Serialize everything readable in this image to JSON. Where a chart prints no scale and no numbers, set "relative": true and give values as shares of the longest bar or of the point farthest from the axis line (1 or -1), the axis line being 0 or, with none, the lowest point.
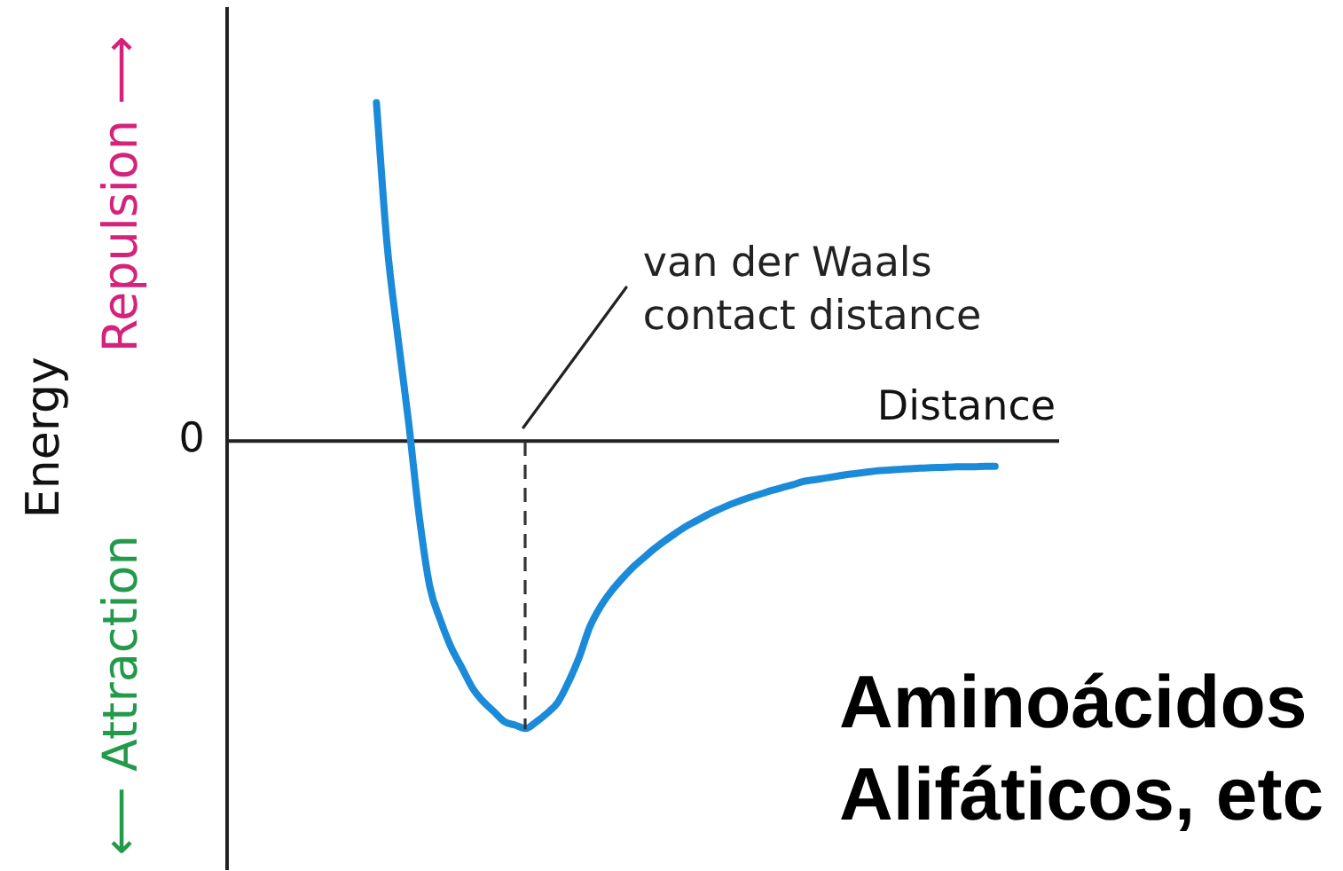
{
  "chart_data": {
    "type": "line",
    "xlabel": "Distance",
    "ylabel": "Energy",
    "relative": true,
    "marker": "none",
    "grid": false,
    "legend": false,
    "categories": [
      null,
      null,
      null,
      null,
      null,
      null,
      null,
      null,
      null,
      null,
      null,
      null,
      null,
      null,
      null,
      null,
      null,
      null,
      null,
      null,
      null,
      null,
      null,
      null,
      null,
      null,
      null,
      null,
      null,
      null,
      null,
      null,
      null,
      null,
      null,
      null,
      null,
      null,
      null,
      null,
      null,
      null,
      null,
      null,
      null,
      null,
      null,
      null,
      null,
      null,
      null,
      null,
      null,
      null,
      null,
      null,
      null,
      null,
      null,
      null,
      null,
      null,
      null,
      null,
      null,
      null,
      null,
      null,
      null,
      null,
      null,
      null,
      null,
      null,
      null,
      null,
      null,
      null,
      null
    ],
    "values": [
      null,
      null,
      null,
      null,
      null,
      null,
      null,
      null,
      null,
      null,
      null,
      null,
      null,
      null,
      1,
      0.58,
      0.31,
      0.06,
      -0.22,
      -0.43,
      -0.53,
      -0.61,
      -0.67,
      -0.73,
      -0.77,
      -0.8,
      -0.83,
      -0.84,
      -0.85,
      -0.83,
      -0.805,
      -0.773,
      -0.713,
      -0.64,
      -0.55,
      -0.49,
      -0.445,
      -0.408,
      -0.375,
      -0.347,
      -0.32,
      -0.296,
      -0.274,
      -0.253,
      -0.236,
      -0.219,
      -0.204,
      -0.19,
      -0.178,
      -0.167,
      -0.157,
      -0.147,
      -0.138,
      -0.13,
      -0.12,
      -0.115,
      -0.11,
      -0.105,
      -0.1,
      -0.096,
      -0.092,
      -0.088,
      -0.086,
      -0.084,
      -0.082,
      -0.08,
      -0.079,
      -0.078,
      -0.077,
      -0.076,
      -0.076,
      -0.075,
      -0.075,
      null,
      null,
      null,
      null,
      null,
      null
    ],
    "color": "#1b8bd9",
    "ref_lines": [
      {
        "axis": "y",
        "value": 0,
        "label": "0"
      }
    ],
    "annotations": [
      "Repulsion ⟶",
      "⟵ Attraction",
      {
        "text": "van der Waals contact distance",
        "y": 0
      },
      "Aminoácidos Alifáticos, etc"
    ]
  }
}
